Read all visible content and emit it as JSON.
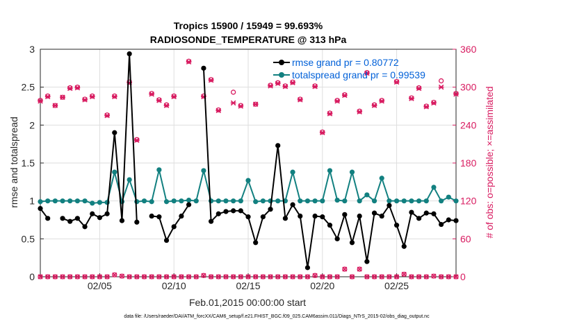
{
  "chart_data": {
    "type": "line",
    "title": "Tropics 15900 / 15949 = 99.693%",
    "subtitle": "RADIOSONDE_TEMPERATURE @ 313 hPa",
    "xlabel": "Feb.01,2015 00:00:00 start",
    "ylabel": "rmse and totalspread",
    "ylabel_right": "# of obs: o=possible; ×=assimilated",
    "footnote": "data file: /Users/raeder/DAI/ATM_forcXX/CAM6_setup/f.e21.FHIST_BGC.f09_025.CAM6assim.011/Diags_NTrS_2015-02/obs_diag_output.nc",
    "xlim": [
      1,
      29
    ],
    "ylim": [
      0,
      3
    ],
    "ylim_right": [
      0,
      360
    ],
    "x_ticks": [
      5,
      10,
      15,
      20,
      25
    ],
    "x_tick_labels": [
      "02/05",
      "02/10",
      "02/15",
      "02/20",
      "02/25"
    ],
    "y_tick_labels": [
      "0",
      "0.5",
      "1",
      "1.5",
      "2",
      "2.5",
      "3"
    ],
    "y_right_tick_labels": [
      "0",
      "60",
      "120",
      "180",
      "240",
      "300",
      "360"
    ],
    "grid": true,
    "legend_position": "top-right",
    "colors": {
      "rmse": "#000000",
      "spread": "#128080",
      "obs": "#d81b60",
      "legend_text": "#0060d8",
      "grid": "#dedede"
    },
    "x": [
      1.0,
      1.5,
      2.0,
      2.5,
      3.0,
      3.5,
      4.0,
      4.5,
      5.0,
      5.5,
      6.0,
      6.5,
      7.0,
      7.5,
      8.0,
      8.5,
      9.0,
      9.5,
      10.0,
      10.5,
      11.0,
      11.5,
      12.0,
      12.5,
      13.0,
      13.5,
      14.0,
      14.5,
      15.0,
      15.5,
      16.0,
      16.5,
      17.0,
      17.5,
      18.0,
      18.5,
      19.0,
      19.5,
      20.0,
      20.5,
      21.0,
      21.5,
      22.0,
      22.5,
      23.0,
      23.5,
      24.0,
      24.5,
      25.0,
      25.5,
      26.0,
      26.5,
      27.0,
      27.5,
      28.0,
      28.5,
      29.0
    ],
    "series": [
      {
        "name": "rmse grand pr = 0.80772",
        "color": "#000000",
        "values": [
          0.9,
          0.77,
          null,
          0.77,
          0.73,
          0.77,
          0.66,
          0.83,
          0.78,
          0.83,
          1.9,
          0.74,
          2.94,
          0.72,
          null,
          0.8,
          0.79,
          0.48,
          0.66,
          0.8,
          0.95,
          null,
          2.75,
          0.73,
          0.83,
          0.86,
          0.87,
          0.87,
          0.79,
          0.45,
          0.79,
          0.89,
          1.73,
          0.77,
          0.95,
          0.8,
          0.12,
          0.8,
          0.79,
          0.68,
          0.5,
          0.82,
          0.45,
          0.8,
          0.2,
          0.84,
          0.8,
          0.94,
          0.68,
          0.4,
          0.85,
          0.77,
          0.84,
          0.83,
          0.69,
          0.75,
          0.74
        ]
      },
      {
        "name": "totalspread grand pr = 0.99539",
        "color": "#128080",
        "values": [
          0.99,
          1.0,
          1.0,
          1.0,
          1.0,
          1.0,
          1.0,
          0.97,
          0.98,
          0.98,
          1.38,
          0.99,
          1.28,
          0.99,
          1.0,
          0.99,
          1.41,
          0.99,
          1.0,
          1.0,
          1.01,
          1.0,
          1.4,
          1.0,
          1.0,
          1.0,
          1.0,
          1.0,
          1.27,
          0.99,
          1.0,
          1.0,
          1.0,
          1.0,
          1.38,
          1.0,
          1.0,
          1.0,
          1.0,
          1.4,
          1.01,
          1.0,
          1.38,
          1.0,
          1.08,
          1.0,
          1.3,
          1.0,
          1.0,
          1.0,
          1.0,
          1.0,
          1.0,
          1.18,
          1.0,
          1.05,
          1.0
        ]
      },
      {
        "name": "obs possible",
        "color": "#d81b60",
        "axis": "right",
        "values": [
          279,
          286,
          271,
          284,
          299,
          300,
          281,
          286,
          null,
          256,
          286,
          null,
          308,
          217,
          null,
          290,
          280,
          272,
          286,
          null,
          341,
          null,
          286,
          312,
          264,
          null,
          292,
          271,
          null,
          273,
          null,
          303,
          307,
          302,
          308,
          281,
          null,
          302,
          229,
          259,
          279,
          288,
          null,
          262,
          323,
          272,
          279,
          null,
          309,
          null,
          283,
          299,
          270,
          276,
          310,
          null,
          290
        ]
      },
      {
        "name": "obs assimilated",
        "color": "#d81b60",
        "axis": "right",
        "values": [
          278,
          285,
          271,
          284,
          298,
          299,
          280,
          285,
          null,
          255,
          285,
          null,
          307,
          216,
          null,
          289,
          279,
          271,
          285,
          null,
          340,
          null,
          285,
          311,
          263,
          null,
          275,
          270,
          null,
          273,
          null,
          302,
          306,
          301,
          307,
          280,
          null,
          301,
          228,
          258,
          278,
          287,
          null,
          261,
          322,
          271,
          278,
          null,
          308,
          null,
          282,
          298,
          269,
          275,
          300,
          null,
          289
        ]
      },
      {
        "name": "obs possible low",
        "color": "#d81b60",
        "axis": "right",
        "values": [
          0,
          0,
          0,
          0,
          0,
          0,
          0,
          0,
          0,
          0,
          3,
          1,
          0,
          0,
          0,
          0,
          0,
          0,
          0,
          0,
          0,
          0,
          2,
          0,
          0,
          0,
          0,
          0,
          0,
          0,
          0,
          0,
          0,
          0,
          0,
          0,
          0,
          2,
          0,
          0,
          0,
          12,
          0,
          12,
          0,
          0,
          0,
          0,
          0,
          4,
          0,
          0,
          0,
          1,
          0,
          0,
          0
        ]
      }
    ]
  },
  "legend": [
    {
      "label": "rmse grand pr = 0.80772"
    },
    {
      "label": "totalspread grand pr = 0.99539"
    }
  ]
}
